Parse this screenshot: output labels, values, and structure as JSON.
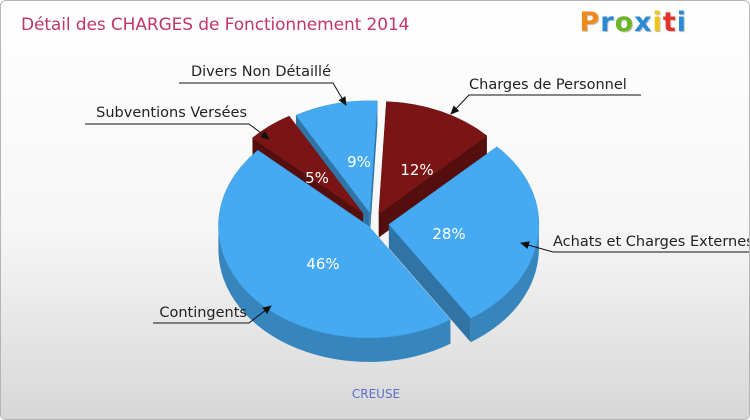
{
  "title": "Détail des CHARGES de Fonctionnement 2014",
  "logo": {
    "text": "Proxiti",
    "colors": [
      "#f08a1c",
      "#2b8ad6",
      "#6fb52a",
      "#2b8ad6",
      "#f0c419",
      "#e2342a",
      "#2b8ad6"
    ]
  },
  "footer": "CREUSE",
  "chart_data": {
    "type": "pie",
    "title": "Détail des CHARGES de Fonctionnement 2014",
    "slices": [
      {
        "label": "Charges de Personnel",
        "value": 12,
        "pct_label": "12%",
        "color": "#7b1414"
      },
      {
        "label": "Achats et Charges Externes",
        "value": 28,
        "pct_label": "28%",
        "color": "#45aaf2"
      },
      {
        "label": "Contingents",
        "value": 46,
        "pct_label": "46%",
        "color": "#45aaf2"
      },
      {
        "label": "Subventions Versées",
        "value": 5,
        "pct_label": "5%",
        "color": "#7b1414"
      },
      {
        "label": "Divers Non Détaillé",
        "value": 9,
        "pct_label": "9%",
        "color": "#45aaf2"
      }
    ]
  }
}
